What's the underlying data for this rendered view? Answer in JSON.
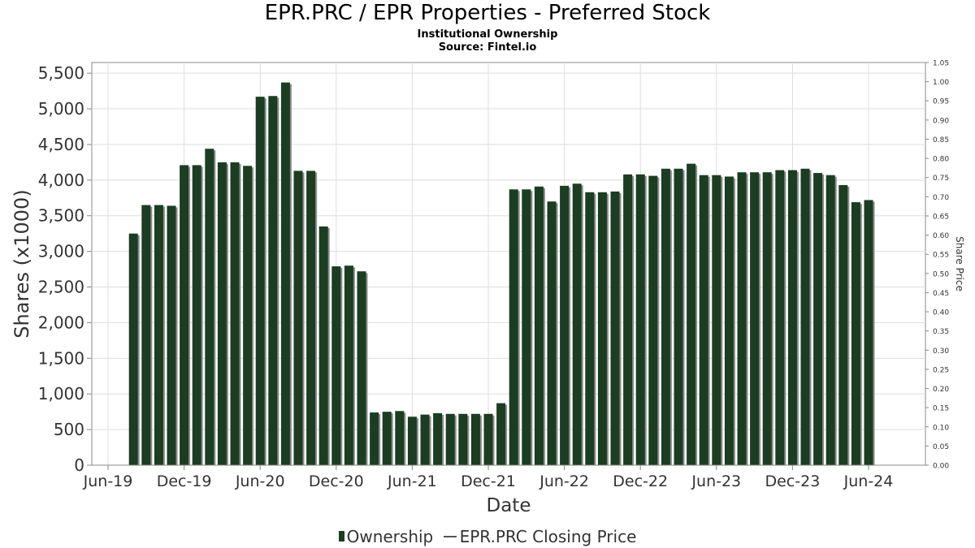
{
  "header": {
    "title": "EPR.PRC / EPR Properties - Preferred Stock",
    "subtitle": "Institutional Ownership",
    "source": "Source: Fintel.io"
  },
  "legend": {
    "ownership_label": "Ownership",
    "price_label": "EPR.PRC Closing Price"
  },
  "colors": {
    "bar_fill": "#1b3d22",
    "bar_shadow": "#8c8c8c",
    "grid": "#dddddd",
    "axis_text": "#333333"
  },
  "chart_data": {
    "type": "bar",
    "title": "EPR.PRC / EPR Properties - Preferred Stock",
    "subtitle": "Institutional Ownership",
    "xlabel": "Date",
    "ylabel": "Shares (x1000)",
    "y2label": "Share Price",
    "x_tick_labels": [
      "Jun-19",
      "Dec-19",
      "Jun-20",
      "Dec-20",
      "Jun-21",
      "Dec-21",
      "Jun-22",
      "Dec-22",
      "Jun-23",
      "Dec-23",
      "Jun-24"
    ],
    "ylim": [
      0,
      5650
    ],
    "y_ticks": [
      "0",
      "500",
      "1,000",
      "1,500",
      "2,000",
      "2,500",
      "3,000",
      "3,500",
      "4,000",
      "4,500",
      "5,000",
      "5,500"
    ],
    "y2lim": [
      0,
      1.05
    ],
    "y2_ticks": [
      "0.00",
      "0.05",
      "0.10",
      "0.15",
      "0.20",
      "0.25",
      "0.30",
      "0.35",
      "0.40",
      "0.45",
      "0.50",
      "0.55",
      "0.60",
      "0.65",
      "0.70",
      "0.75",
      "0.80",
      "0.85",
      "0.90",
      "0.95",
      "1.00",
      "1.05"
    ],
    "grid": true,
    "legend_position": "bottom",
    "series": [
      {
        "name": "Ownership",
        "values": [
          3250,
          3650,
          3650,
          3640,
          4210,
          4210,
          4440,
          4250,
          4250,
          4200,
          5170,
          5180,
          5370,
          4130,
          4130,
          3350,
          2790,
          2800,
          2720,
          740,
          750,
          760,
          680,
          710,
          730,
          720,
          720,
          720,
          720,
          870,
          3870,
          3870,
          3910,
          3700,
          3920,
          3950,
          3830,
          3830,
          3840,
          4080,
          4080,
          4060,
          4160,
          4160,
          4230,
          4070,
          4070,
          4050,
          4110,
          4110,
          4110,
          4140,
          4140,
          4160,
          4100,
          4070,
          3930,
          3690,
          3720
        ]
      },
      {
        "name": "EPR.PRC Closing Price",
        "values": []
      }
    ]
  }
}
